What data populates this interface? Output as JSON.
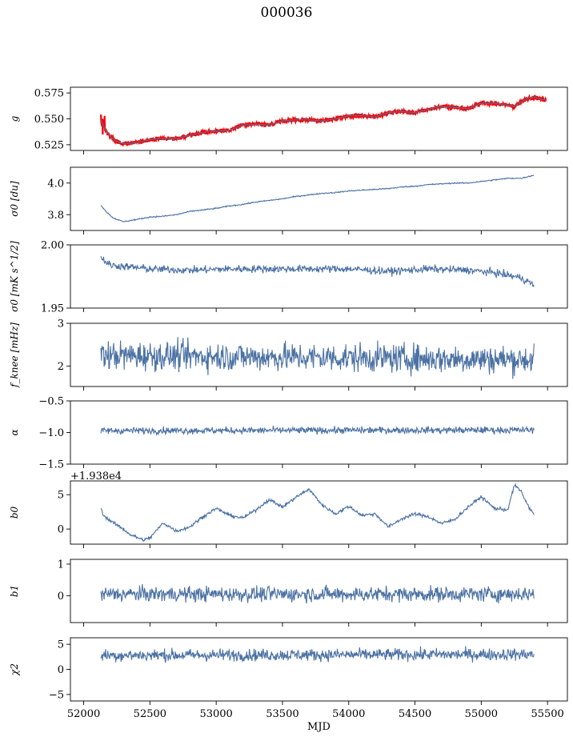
{
  "figure": {
    "title": "000036"
  },
  "colors": {
    "series": "#4c72a4",
    "overlay": "#ff0000",
    "axis": "#000000"
  },
  "chart_data": [
    {
      "type": "line",
      "id": "g",
      "ylabel": "g",
      "ylim": [
        0.5195,
        0.5805
      ],
      "yticks": [
        0.525,
        0.55,
        0.575
      ],
      "ytick_labels": [
        "0.525",
        "0.550",
        "0.575"
      ],
      "x": [
        52130,
        52160,
        52200,
        52250,
        52300,
        52400,
        52500,
        52600,
        52700,
        52800,
        52900,
        53000,
        53100,
        53200,
        53300,
        53400,
        53500,
        53600,
        53700,
        53800,
        53900,
        54000,
        54100,
        54200,
        54300,
        54400,
        54500,
        54600,
        54700,
        54800,
        54900,
        55000,
        55100,
        55200,
        55250,
        55300,
        55350,
        55400,
        55450,
        55490
      ],
      "y": [
        0.549,
        0.54,
        0.533,
        0.528,
        0.526,
        0.527,
        0.53,
        0.531,
        0.531,
        0.534,
        0.537,
        0.538,
        0.539,
        0.544,
        0.545,
        0.544,
        0.548,
        0.549,
        0.549,
        0.548,
        0.55,
        0.553,
        0.553,
        0.552,
        0.556,
        0.557,
        0.556,
        0.559,
        0.562,
        0.561,
        0.56,
        0.565,
        0.565,
        0.563,
        0.562,
        0.566,
        0.57,
        0.571,
        0.569,
        0.568
      ],
      "overlay_amplitude": 0.0015,
      "xlim": [
        51900,
        55650
      ],
      "xticks": [
        52000,
        52500,
        53000,
        53500,
        54000,
        54500,
        55000,
        55500
      ]
    },
    {
      "type": "line",
      "id": "sigma0_du",
      "ylabel": "σ0 [du]",
      "ylim": [
        3.7,
        4.1
      ],
      "yticks": [
        3.8,
        4.0
      ],
      "ytick_labels": [
        "3.8",
        "4.0"
      ],
      "x": [
        52130,
        52170,
        52220,
        52300,
        52400,
        52500,
        52600,
        52700,
        52800,
        52900,
        53000,
        53100,
        53200,
        53300,
        53400,
        53500,
        53600,
        53700,
        53800,
        53900,
        54000,
        54100,
        54200,
        54300,
        54400,
        54500,
        54600,
        54700,
        54800,
        54900,
        55000,
        55100,
        55200,
        55300,
        55400
      ],
      "y": [
        3.86,
        3.82,
        3.78,
        3.755,
        3.77,
        3.785,
        3.79,
        3.8,
        3.82,
        3.83,
        3.84,
        3.855,
        3.865,
        3.88,
        3.89,
        3.9,
        3.915,
        3.925,
        3.935,
        3.94,
        3.95,
        3.955,
        3.96,
        3.965,
        3.975,
        3.98,
        3.99,
        3.995,
        4.0,
        4.0,
        4.01,
        4.02,
        4.03,
        4.03,
        4.05
      ],
      "noise": 0.003
    },
    {
      "type": "line",
      "id": "sigma0_mK",
      "ylabel": "σ0 [mK s^1/2]",
      "ylim": [
        1.95,
        2.0
      ],
      "yticks": [
        1.95,
        2.0
      ],
      "ytick_labels": [
        "1.95",
        "2.00"
      ],
      "x": [
        52130,
        52200,
        52500,
        52800,
        53100,
        53400,
        53700,
        54000,
        54300,
        54600,
        54900,
        55100,
        55300,
        55400
      ],
      "y": [
        1.99,
        1.984,
        1.981,
        1.98,
        1.981,
        1.981,
        1.981,
        1.981,
        1.979,
        1.981,
        1.98,
        1.978,
        1.974,
        1.968
      ],
      "noise": 0.0025
    },
    {
      "type": "line",
      "id": "fknee",
      "ylabel": "f_knee [mHz]",
      "ylim": [
        1.52,
        3.0
      ],
      "yticks": [
        2,
        3
      ],
      "ytick_labels": [
        "2",
        "3"
      ],
      "x": [
        52130,
        55400
      ],
      "y": [
        2.25,
        2.15
      ],
      "noise": 0.28
    },
    {
      "type": "line",
      "id": "alpha",
      "ylabel": "α",
      "ylim": [
        -1.5,
        -0.5
      ],
      "yticks": [
        -1.5,
        -1.0,
        -0.5
      ],
      "ytick_labels": [
        "−1.5",
        "−1.0",
        "−0.5"
      ],
      "x": [
        52130,
        55400
      ],
      "y": [
        -0.97,
        -0.96
      ],
      "noise": 0.045
    },
    {
      "type": "line",
      "id": "b0",
      "ylabel": "b0",
      "offset_label": "+1.938e4",
      "ylim": [
        -2.2,
        7.0
      ],
      "yticks": [
        0,
        5
      ],
      "ytick_labels": [
        "0",
        "5"
      ],
      "x": [
        52130,
        52150,
        52200,
        52300,
        52350,
        52450,
        52500,
        52600,
        52700,
        52800,
        52900,
        53000,
        53100,
        53200,
        53300,
        53400,
        53500,
        53600,
        53700,
        53800,
        53900,
        54000,
        54100,
        54200,
        54300,
        54400,
        54500,
        54600,
        54700,
        54800,
        54900,
        55000,
        55100,
        55200,
        55250,
        55300,
        55350,
        55400
      ],
      "y": [
        3.0,
        2.0,
        1.2,
        0.0,
        -0.8,
        -1.6,
        -1.3,
        0.9,
        -0.3,
        0.3,
        1.8,
        3.0,
        2.0,
        1.6,
        2.8,
        4.3,
        3.2,
        4.6,
        5.8,
        3.5,
        2.2,
        3.3,
        2.0,
        2.2,
        0.3,
        1.5,
        2.2,
        1.8,
        0.8,
        1.4,
        3.2,
        4.7,
        3.0,
        2.8,
        6.4,
        5.5,
        3.5,
        2.0
      ],
      "noise": 0.2
    },
    {
      "type": "line",
      "id": "b1",
      "ylabel": "b1",
      "ylim": [
        -0.85,
        1.15
      ],
      "yticks": [
        0,
        1
      ],
      "ytick_labels": [
        "0",
        "1"
      ],
      "x": [
        52130,
        55400
      ],
      "y": [
        0.05,
        0.05
      ],
      "noise": 0.2
    },
    {
      "type": "line",
      "id": "chi2",
      "ylabel": "χ2",
      "xlabel": "MJD",
      "ylim": [
        -6.3,
        6.3
      ],
      "yticks": [
        -5,
        0,
        5
      ],
      "ytick_labels": [
        "−5",
        "0",
        "5"
      ],
      "x": [
        52130,
        55400
      ],
      "y": [
        2.8,
        3.0
      ],
      "noise": 1.0,
      "xtick_labels": [
        "52000",
        "52500",
        "53000",
        "53500",
        "54000",
        "54500",
        "55000",
        "55500"
      ]
    }
  ]
}
